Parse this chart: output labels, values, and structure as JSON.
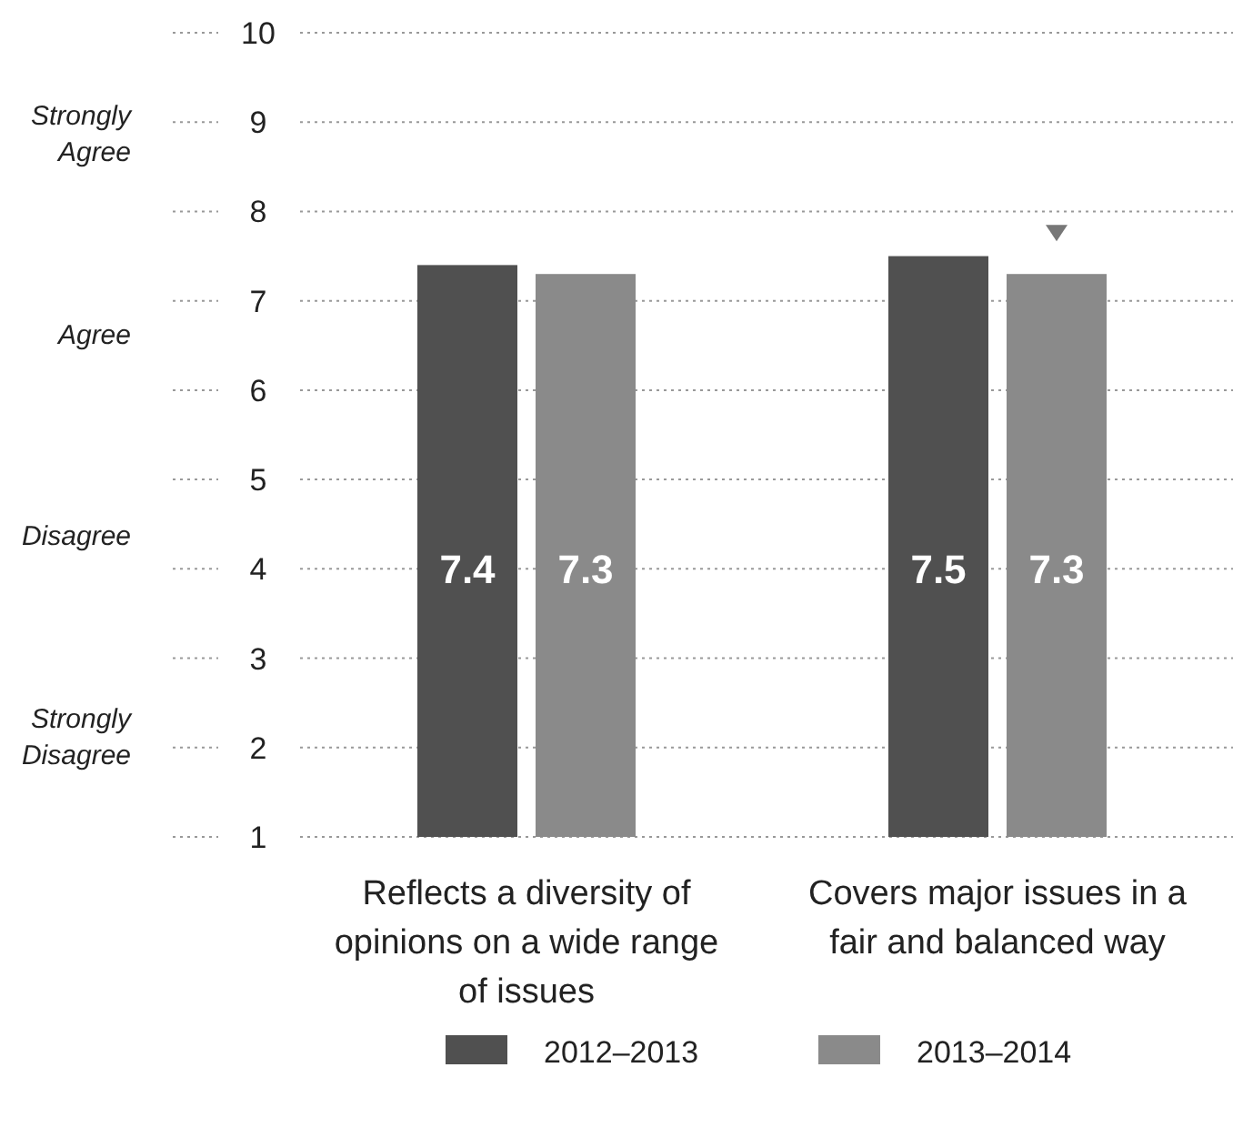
{
  "chart_data": {
    "type": "bar",
    "categories": [
      "Reflects a diversity of opinions on a wide range of issues",
      "Covers major issues in a fair and balanced way"
    ],
    "series": [
      {
        "name": "2012–2013",
        "color": "#505050",
        "values": [
          7.4,
          7.5
        ]
      },
      {
        "name": "2013–2014",
        "color": "#8a8a8a",
        "values": [
          7.3,
          7.3
        ]
      }
    ],
    "ylim": [
      1,
      10
    ],
    "yticks": [
      1,
      2,
      3,
      4,
      5,
      6,
      7,
      8,
      9,
      10
    ],
    "grid": "y",
    "line_style": "dotted",
    "legend": "bottom",
    "data_labels": true,
    "annotations": [
      "Strongly Agree",
      "Agree",
      "Disagree",
      "Strongly Disagree"
    ]
  }
}
